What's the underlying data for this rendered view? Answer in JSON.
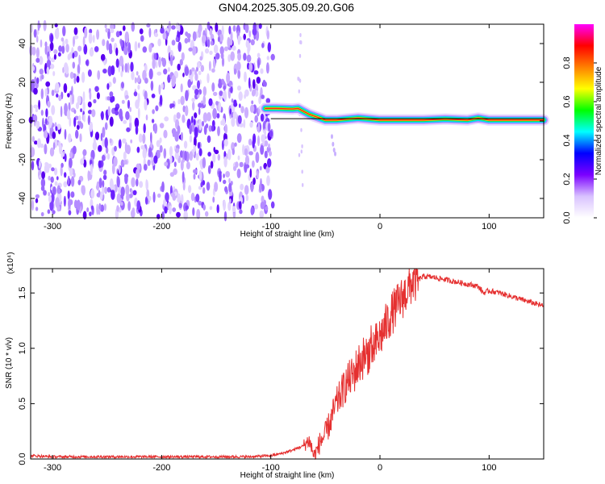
{
  "title": "GN04.2025.305.09.20.G06",
  "chart_data": [
    {
      "type": "heatmap",
      "xlabel": "Height of straight line (km)",
      "ylabel": "Frequency (Hz)",
      "xlim": [
        -320,
        150
      ],
      "ylim": [
        -50,
        50
      ],
      "xticks": [
        -300,
        -200,
        -100,
        0,
        100
      ],
      "yticks": [
        -40,
        -20,
        0,
        20,
        40
      ],
      "colorbar": {
        "label": "Normalized spectral amplitude",
        "range": [
          0,
          1
        ],
        "ticks": [
          "0.0",
          "0.2",
          "0.4",
          "0.6",
          "0.8"
        ],
        "colors": [
          "#ffffff",
          "#d9c2ff",
          "#7b00ff",
          "#0000ff",
          "#00ffff",
          "#00ff00",
          "#ffff00",
          "#ff8000",
          "#ff0000",
          "#ff00ff"
        ]
      },
      "noise_region": {
        "x": [
          -320,
          -98
        ],
        "amplitude": [
          0.05,
          0.25
        ]
      },
      "signal_ridge": {
        "x": [
          -105,
          -95,
          -80,
          -75,
          -70,
          -65,
          -60,
          -55,
          -50,
          -40,
          -30,
          -20,
          -10,
          0,
          20,
          40,
          60,
          80,
          90,
          100,
          120,
          150
        ],
        "frequency_hz": [
          6.5,
          6.5,
          6.2,
          6.5,
          5,
          3.5,
          2.5,
          1.5,
          0.5,
          0.5,
          1,
          1.5,
          1,
          0.5,
          0.5,
          0.5,
          1,
          0.5,
          1.5,
          0.5,
          0.5,
          0.5
        ]
      }
    },
    {
      "type": "line",
      "xlabel": "Height of straight line (km)",
      "ylabel": "SNR (10 * v/v)",
      "multiplier": "(x10⁴)",
      "xlim": [
        -320,
        150
      ],
      "ylim": [
        0,
        1.72
      ],
      "xticks": [
        -300,
        -200,
        -100,
        0,
        100
      ],
      "yticks": [
        "0.0",
        "0.5",
        "1.0",
        "1.5"
      ],
      "ytick_values": [
        0,
        0.5,
        1.0,
        1.5
      ],
      "series": [
        {
          "color": "#e53030",
          "x": [
            -320,
            -300,
            -250,
            -200,
            -150,
            -120,
            -100,
            -90,
            -80,
            -70,
            -65,
            -60,
            -55,
            -50,
            -45,
            -40,
            -35,
            -30,
            -25,
            -20,
            -15,
            -10,
            -5,
            0,
            5,
            10,
            15,
            20,
            25,
            30,
            35,
            40,
            50,
            60,
            70,
            80,
            90,
            95,
            100,
            110,
            120,
            130,
            140,
            150
          ],
          "values": [
            0.03,
            0.02,
            0.02,
            0.02,
            0.02,
            0.02,
            0.03,
            0.05,
            0.08,
            0.12,
            0.17,
            0.02,
            0.15,
            0.22,
            0.35,
            0.5,
            0.6,
            0.7,
            0.75,
            0.85,
            0.92,
            0.97,
            1.02,
            1.1,
            1.2,
            1.3,
            1.38,
            1.45,
            1.52,
            1.6,
            1.62,
            1.65,
            1.64,
            1.62,
            1.6,
            1.58,
            1.56,
            1.5,
            1.52,
            1.5,
            1.47,
            1.44,
            1.41,
            1.38
          ]
        }
      ]
    }
  ]
}
